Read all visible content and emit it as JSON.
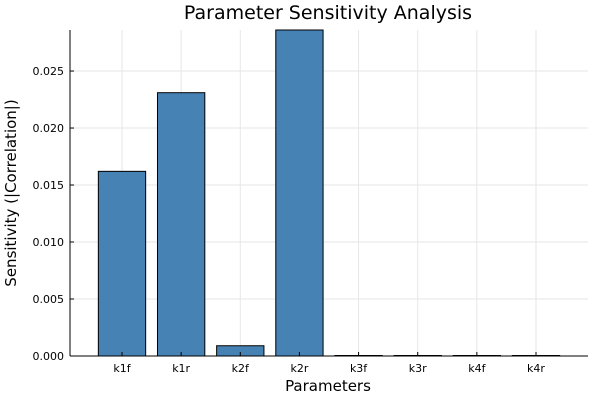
{
  "chart_data": {
    "type": "bar",
    "title": "Parameter Sensitivity Analysis",
    "xlabel": "Parameters",
    "ylabel": "Sensitivity (|Correlation|)",
    "categories": [
      "k1f",
      "k1r",
      "k2f",
      "k2r",
      "k3f",
      "k3r",
      "k4f",
      "k4r"
    ],
    "values": [
      0.0162,
      0.0231,
      0.0009,
      0.0286,
      2e-05,
      1e-05,
      1e-05,
      1e-05
    ],
    "ylim": [
      0,
      0.0286
    ],
    "yticks": [
      0.0,
      0.005,
      0.01,
      0.015,
      0.02,
      0.025
    ],
    "ytick_labels": [
      "0.000",
      "0.005",
      "0.010",
      "0.015",
      "0.020",
      "0.025"
    ],
    "bar_color": "#4682b4",
    "grid": true,
    "legend": "none"
  }
}
